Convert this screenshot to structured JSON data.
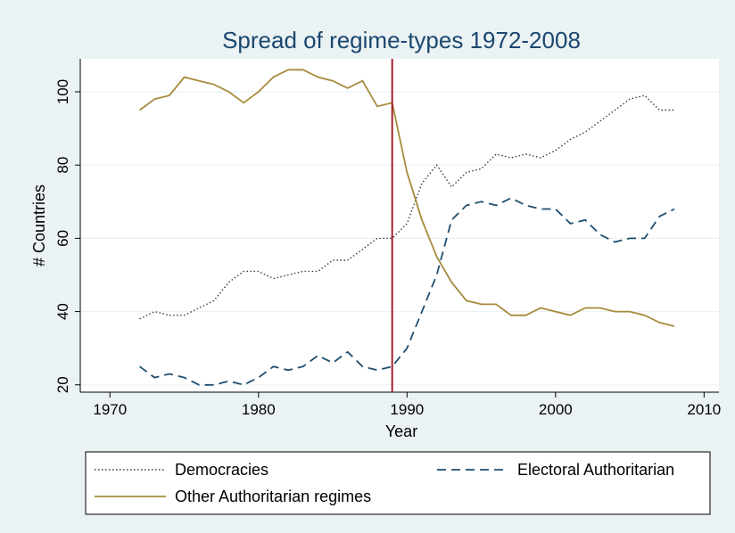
{
  "chart_data": {
    "type": "line",
    "title": "Spread of regime-types 1972-2008",
    "xlabel": "Year",
    "ylabel": "# Countries",
    "xlim": [
      1968,
      2011
    ],
    "ylim": [
      18,
      109
    ],
    "xticks": [
      1970,
      1980,
      1990,
      2000,
      2010
    ],
    "yticks": [
      20,
      40,
      60,
      80,
      100
    ],
    "grid": true,
    "legend_position": "bottom",
    "vline": {
      "x": 1989,
      "color": "#a3202f"
    },
    "years": [
      1972,
      1973,
      1974,
      1975,
      1976,
      1977,
      1978,
      1979,
      1980,
      1981,
      1982,
      1983,
      1984,
      1985,
      1986,
      1987,
      1988,
      1989,
      1990,
      1991,
      1992,
      1993,
      1994,
      1995,
      1996,
      1997,
      1998,
      1999,
      2000,
      2001,
      2002,
      2003,
      2004,
      2005,
      2006,
      2007,
      2008
    ],
    "series": [
      {
        "name": "Democracies",
        "color": "#3a3a3a",
        "dash": "dotted",
        "values": [
          38,
          40,
          39,
          39,
          41,
          43,
          48,
          51,
          51,
          49,
          50,
          51,
          51,
          54,
          54,
          57,
          60,
          60,
          64,
          75,
          80,
          74,
          78,
          79,
          83,
          82,
          83,
          82,
          84,
          87,
          89,
          92,
          95,
          98,
          99,
          95,
          95
        ]
      },
      {
        "name": "Electoral Authoritarian",
        "color": "#1f4e6e",
        "dash": "dashed",
        "values": [
          25,
          22,
          23,
          22,
          20,
          20,
          21,
          20,
          22,
          25,
          24,
          25,
          28,
          26,
          29,
          25,
          24,
          25,
          30,
          40,
          50,
          65,
          69,
          70,
          69,
          71,
          69,
          68,
          68,
          64,
          65,
          61,
          59,
          60,
          60,
          66,
          68
        ]
      },
      {
        "name": "Other Authoritarian regimes",
        "color": "#a68b3c",
        "dash": "solid",
        "values": [
          95,
          98,
          99,
          104,
          103,
          102,
          100,
          97,
          100,
          104,
          106,
          106,
          104,
          103,
          101,
          103,
          96,
          97,
          78,
          65,
          55,
          48,
          43,
          42,
          42,
          39,
          39,
          41,
          40,
          39,
          41,
          41,
          40,
          40,
          39,
          37,
          36
        ]
      }
    ]
  }
}
